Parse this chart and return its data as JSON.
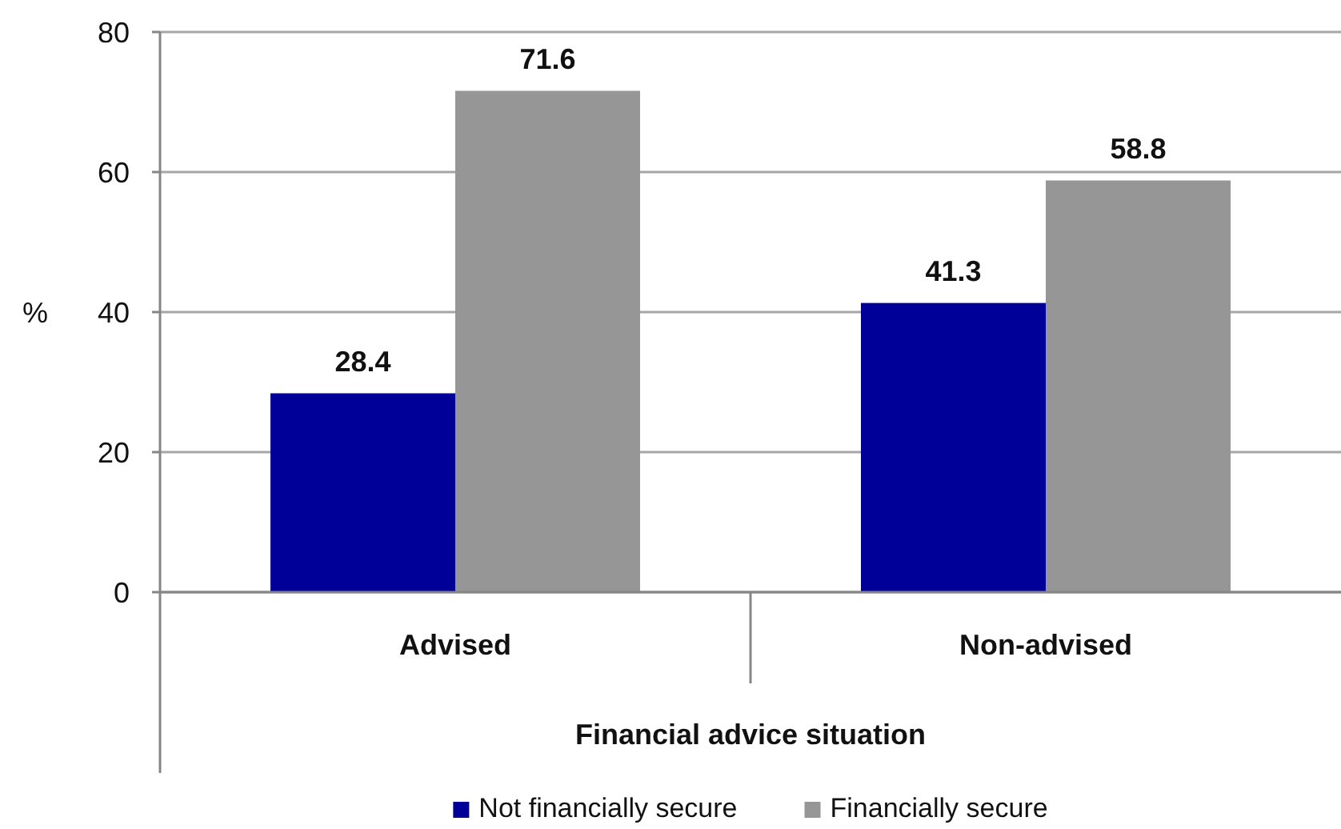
{
  "chart_data": {
    "type": "bar",
    "categories": [
      "Advised",
      "Non-advised"
    ],
    "series": [
      {
        "name": "Not financially secure",
        "color": "#000099",
        "values": [
          28.4,
          41.3
        ]
      },
      {
        "name": "Financially secure",
        "color": "#969696",
        "values": [
          71.6,
          58.8
        ]
      }
    ],
    "xlabel": "Financial advice situation",
    "ylabel": "%",
    "ylim": [
      0,
      80
    ],
    "yticks": [
      0,
      20,
      40,
      60,
      80
    ],
    "grid": "y",
    "legend": "bottom",
    "data_labels": true
  }
}
